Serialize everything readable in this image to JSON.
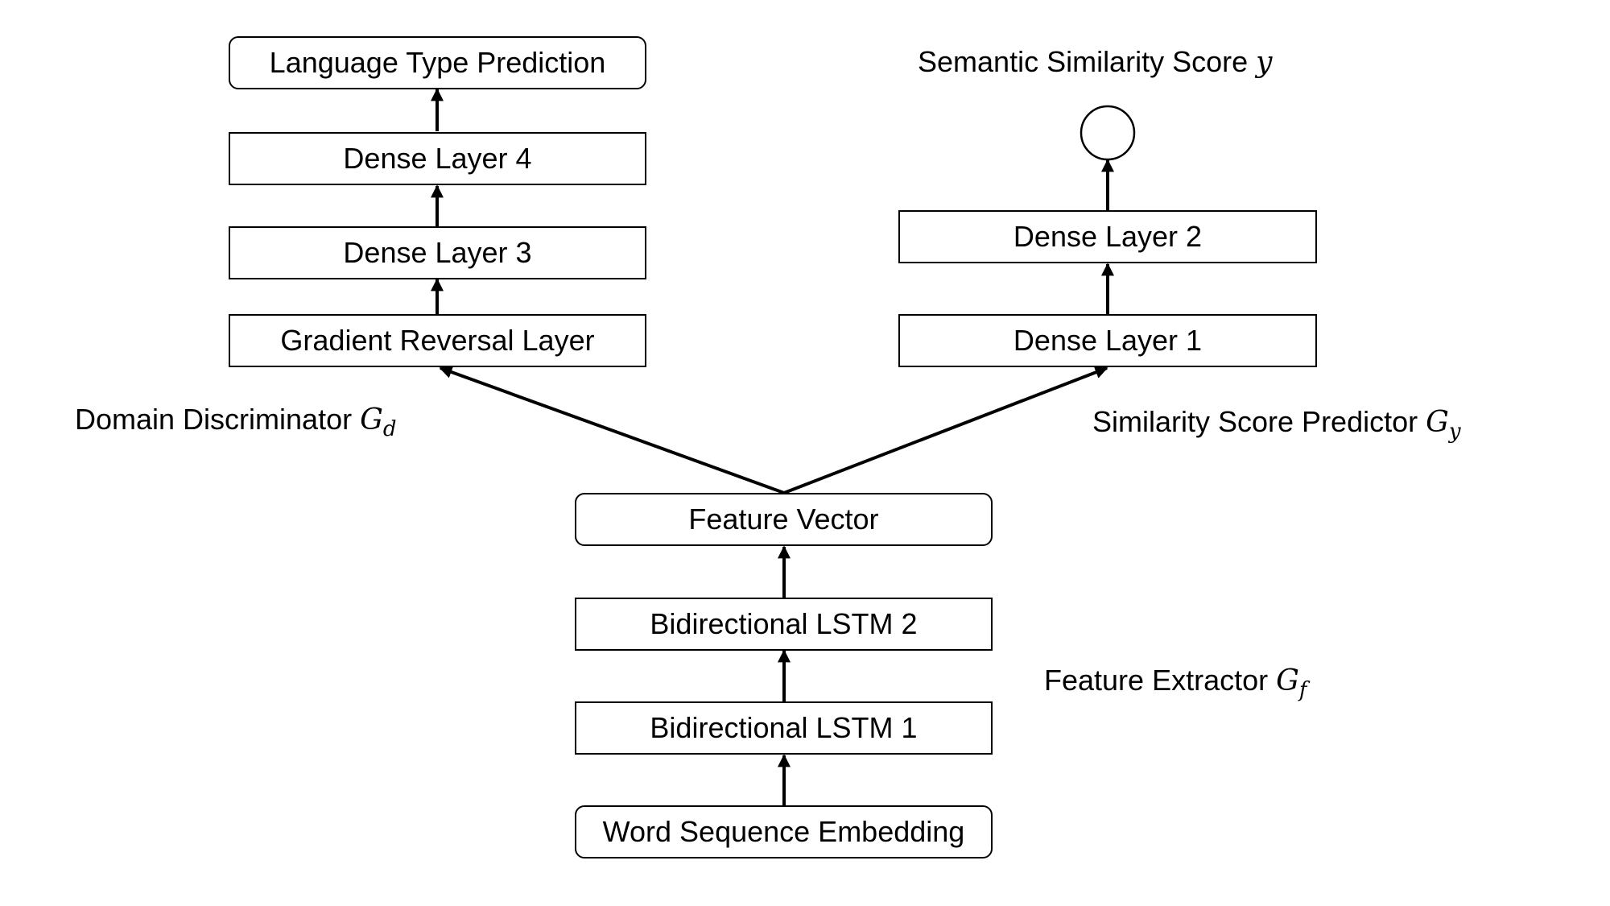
{
  "nodes": {
    "language_type_prediction": "Language Type Prediction",
    "dense_layer_4": "Dense Layer 4",
    "dense_layer_3": "Dense Layer 3",
    "gradient_reversal_layer": "Gradient Reversal Layer",
    "dense_layer_2": "Dense Layer 2",
    "dense_layer_1": "Dense Layer 1",
    "feature_vector": "Feature Vector",
    "bidirectional_lstm_2": "Bidirectional LSTM 2",
    "bidirectional_lstm_1": "Bidirectional LSTM 1",
    "word_sequence_embedding": "Word Sequence Embedding"
  },
  "labels": {
    "semantic_similarity_score": {
      "text": "Semantic Similarity Score",
      "symbol": "y"
    },
    "domain_discriminator": {
      "text": "Domain Discriminator",
      "symbol": "G",
      "subscript": "d"
    },
    "similarity_score_predictor": {
      "text": "Similarity Score Predictor",
      "symbol": "G",
      "subscript": "y"
    },
    "feature_extractor": {
      "text": "Feature Extractor",
      "symbol": "G",
      "subscript": "f"
    }
  },
  "edges": [
    {
      "from": "word_sequence_embedding",
      "to": "bidirectional_lstm_1"
    },
    {
      "from": "bidirectional_lstm_1",
      "to": "bidirectional_lstm_2"
    },
    {
      "from": "bidirectional_lstm_2",
      "to": "feature_vector"
    },
    {
      "from": "feature_vector",
      "to": "gradient_reversal_layer"
    },
    {
      "from": "feature_vector",
      "to": "dense_layer_1"
    },
    {
      "from": "gradient_reversal_layer",
      "to": "dense_layer_3"
    },
    {
      "from": "dense_layer_3",
      "to": "dense_layer_4"
    },
    {
      "from": "dense_layer_4",
      "to": "language_type_prediction"
    },
    {
      "from": "dense_layer_1",
      "to": "dense_layer_2"
    },
    {
      "from": "dense_layer_2",
      "to": "output_node"
    }
  ]
}
